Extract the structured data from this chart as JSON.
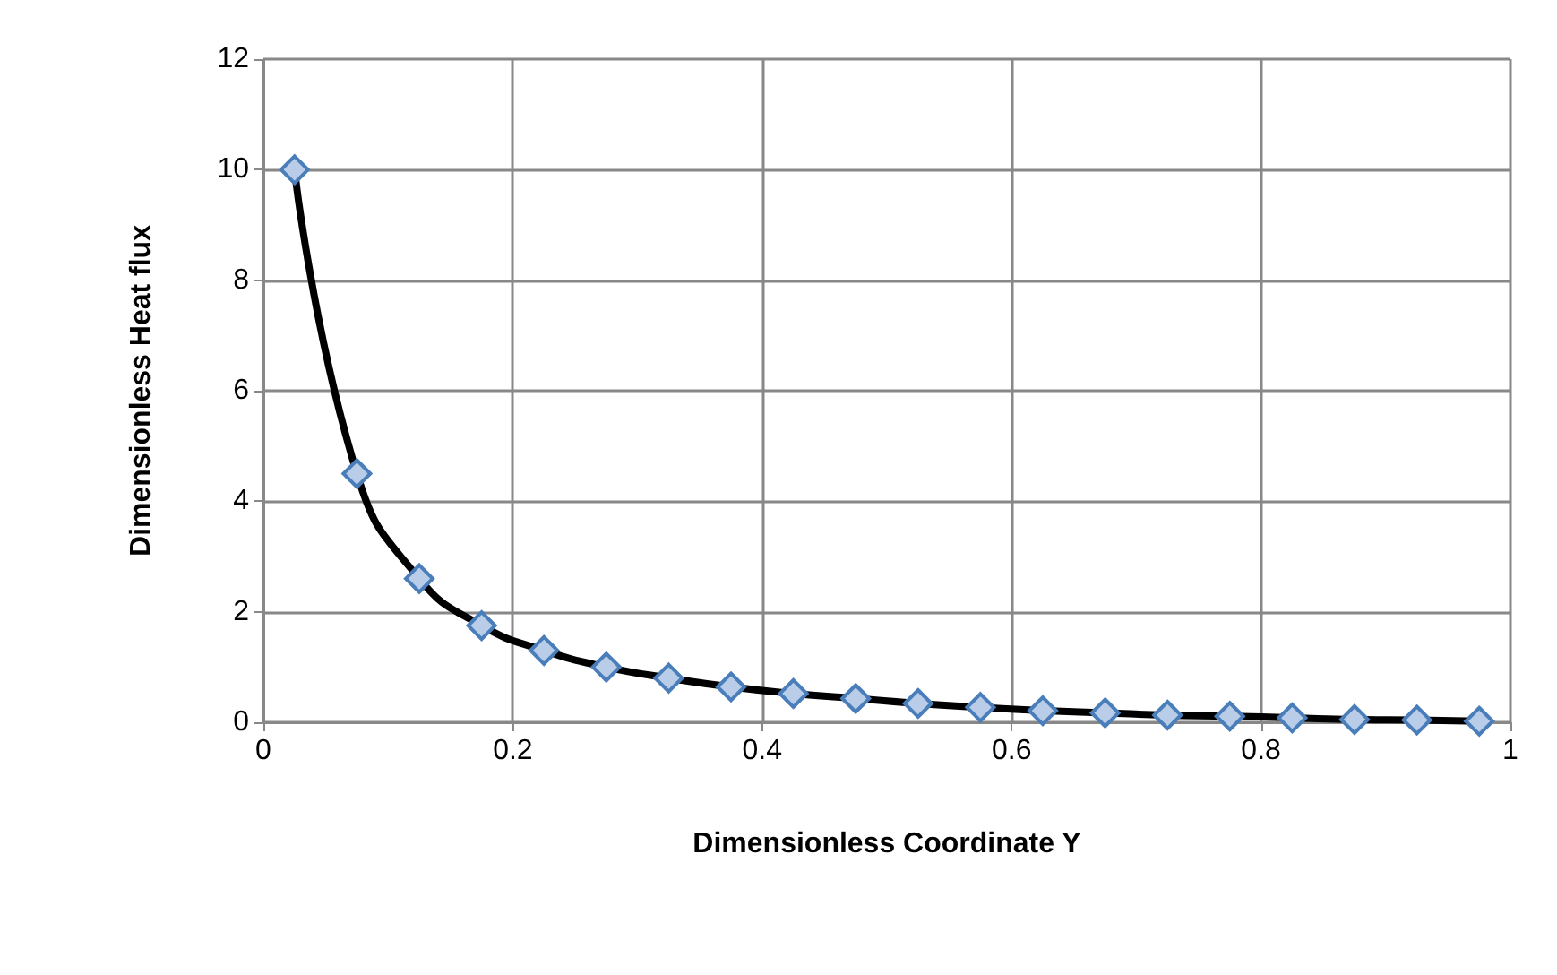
{
  "chart_data": {
    "type": "line",
    "xlabel": "Dimensionless Coordinate Y",
    "ylabel": "Dimensionless Heat flux",
    "x": [
      0.025,
      0.075,
      0.125,
      0.175,
      0.225,
      0.275,
      0.325,
      0.375,
      0.425,
      0.475,
      0.525,
      0.575,
      0.625,
      0.675,
      0.725,
      0.775,
      0.825,
      0.875,
      0.925,
      0.975
    ],
    "series": [
      {
        "color": "#000000",
        "values": [
          10,
          4.5,
          2.6,
          1.75,
          1.3,
          1.0,
          0.8,
          0.64,
          0.52,
          0.43,
          0.34,
          0.27,
          0.21,
          0.17,
          0.13,
          0.11,
          0.08,
          0.05,
          0.04,
          0.02
        ]
      }
    ],
    "xlim": [
      0,
      1
    ],
    "xticks": [
      0,
      0.2,
      0.4,
      0.6,
      0.8,
      1
    ],
    "ylim": [
      0,
      12
    ],
    "yticks": [
      0,
      2,
      4,
      6,
      8,
      10,
      12
    ],
    "grid": true,
    "marker": "diamond",
    "line_style": "solid"
  }
}
